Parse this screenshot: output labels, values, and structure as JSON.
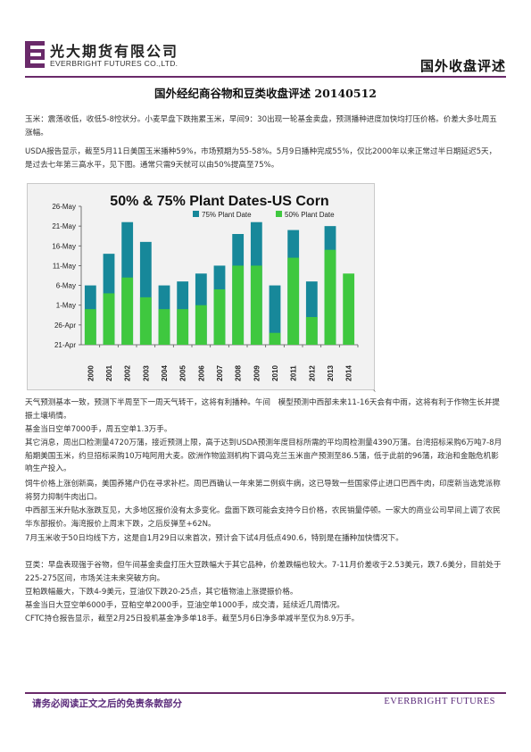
{
  "header": {
    "company_cn": "光大期货有限公司",
    "company_en": "EVERBRIGHT FUTURES CO.,LTD.",
    "section": "国外收盘评述",
    "brand_color": "#6a2a6a"
  },
  "doc_title": "国外经纪商谷物和豆类收盘评述 20140512",
  "paragraphs_top": [
    "玉米：震荡收低，收低5-8悾状分。小麦早盘下跌拖累玉米，早间9：30出现一轮基金卖盘，预测播种进度加快均打压价格。价差大多吐周五涨幅。",
    "USDA报告显示，截至5月11日美国玉米播种59%，市场预期为55-58%。5月9日播种完成55%，仅比2000年以来正常过半日期延迟5天，是过去七年第三高水平，见下图。通常只需9天就可以由50%提高至75%。"
  ],
  "chart_data": {
    "type": "bar",
    "title": "50% & 75% Plant Dates-US Corn",
    "categories": [
      "2000",
      "2001",
      "2002",
      "2003",
      "2004",
      "2005",
      "2006",
      "2007",
      "2008",
      "2009",
      "2010",
      "2011",
      "2012",
      "2013",
      "2014"
    ],
    "series": [
      {
        "name": "75% Plant Date",
        "color": "#17889a",
        "values": [
          "2014-05-06",
          "2014-05-14",
          "2014-05-22",
          "2014-05-17",
          "2014-05-06",
          "2014-05-07",
          "2014-05-09",
          "2014-05-11",
          "2014-05-19",
          "2014-05-22",
          "2014-05-06",
          "2014-05-20",
          "2014-05-07",
          "2014-05-21",
          null
        ]
      },
      {
        "name": "50% Plant Date",
        "color": "#3fc83f",
        "values": [
          "2014-04-30",
          "2014-05-04",
          "2014-05-08",
          "2014-05-03",
          "2014-04-30",
          "2014-04-30",
          "2014-05-01",
          "2014-05-05",
          "2014-05-11",
          "2014-05-11",
          "2014-04-24",
          "2014-05-13",
          "2014-04-28",
          "2014-05-15",
          "2014-05-09"
        ]
      }
    ],
    "ytick_labels": [
      "21-Apr",
      "26-Apr",
      "1-May",
      "6-May",
      "11-May",
      "16-May",
      "21-May",
      "26-May"
    ],
    "ylim": [
      "2014-04-21",
      "2014-05-26"
    ],
    "legend_position": "top-right",
    "grid": false
  },
  "tick_mark": "、",
  "paragraphs_mid": [
    "天气预测基本一致，预测下半周至下一周天气转干，这将有利播种。午间　模型预测中西部未来11-16天会有中雨，这将有利于作物生长并提振土壤墒情。",
    "基金当日空单7000手，周五空单1.3万手。",
    "其它消息，周出口检测量4720万蒲，接近预测上限，高于达到USDA预测年度目标所需的平均周检测量4390万蒲。台湾招标采购6万吨7-8月船期美国玉米，约旦招标采购10万吨阿用大麦。欧洲作物监测机构下调乌克兰玉米亩产预测至86.5蒲，低于此前的96蒲，政治和金融危机影响生产投入。",
    "饲牛价格上涨创新高，美国养猪户仍在寻求补栏。周巴西确认一年来第二例疯牛病，这已导致一些国家停止进口巴西牛肉，印度新当选党派称将努力抑制牛肉出口。",
    "中西部玉米升贴水涨跌互见，大多地区报价没有太多变化。盘面下跌可能会支持今日价格，农民销量停顿。一家大的商业公司早间上调了农民华东部报价。海湾报价上周末下跌，之后反弹至+62N。",
    "7月玉米收于50日均线下方，这是自1月29日以来首次，预计会下试4月低点490.6，特别是在播种加快情况下。"
  ],
  "paragraphs_bottom": [
    "豆类：早盘表现强于谷物，但午间基金卖盘打压大豆跌幅大于其它品种，价差跌幅也较大。7-11月价差收于2.53美元，跌7.6美分，目前处于225-275区间，市场关注未来突破方向。",
    "豆粕跌幅最大，下跌4-9美元，豆油仅下跌20-25点，其它植物油上涨提振价格。",
    "基金当日大豆空单6000手，豆粕空单2000手，豆油空单1000手，成交清，延续近几周情况。",
    "CFTC持仓报告显示，截至2月25日投机基金净多单18手。截至5月6日净多单减半至仅为8.9万手。"
  ],
  "footer": {
    "left": "请务必阅读正文之后的免责条款部分",
    "right": "EVERBRIGHT FUTURES"
  }
}
